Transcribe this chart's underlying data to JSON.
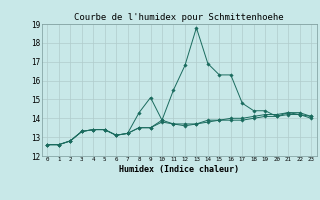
{
  "title": "Courbe de l'humidex pour Schmittenhoehe",
  "xlabel": "Humidex (Indice chaleur)",
  "xlim": [
    -0.5,
    23.5
  ],
  "ylim": [
    12,
    19
  ],
  "xticks": [
    0,
    1,
    2,
    3,
    4,
    5,
    6,
    7,
    8,
    9,
    10,
    11,
    12,
    13,
    14,
    15,
    16,
    17,
    18,
    19,
    20,
    21,
    22,
    23
  ],
  "yticks": [
    12,
    13,
    14,
    15,
    16,
    17,
    18,
    19
  ],
  "bg_color": "#c8e8e8",
  "grid_color": "#b0cccc",
  "line_color": "#1a6b5e",
  "line1": [
    12.6,
    12.6,
    12.8,
    13.3,
    13.4,
    13.4,
    13.1,
    13.2,
    14.3,
    15.1,
    13.9,
    15.5,
    16.8,
    18.8,
    16.9,
    16.3,
    16.3,
    14.8,
    14.4,
    14.4,
    14.1,
    14.3,
    14.2,
    14.1
  ],
  "line2": [
    12.6,
    12.6,
    12.8,
    13.3,
    13.4,
    13.4,
    13.1,
    13.2,
    13.5,
    13.5,
    13.9,
    13.7,
    13.7,
    13.7,
    13.9,
    13.9,
    14.0,
    14.0,
    14.1,
    14.2,
    14.2,
    14.3,
    14.3,
    14.1
  ],
  "line3": [
    12.6,
    12.6,
    12.8,
    13.3,
    13.4,
    13.4,
    13.1,
    13.2,
    13.5,
    13.5,
    13.8,
    13.7,
    13.6,
    13.7,
    13.8,
    13.9,
    13.9,
    13.9,
    14.0,
    14.1,
    14.1,
    14.2,
    14.2,
    14.0
  ],
  "title_fontsize": 6.5,
  "xlabel_fontsize": 6.0,
  "xtick_fontsize": 4.2,
  "ytick_fontsize": 5.5
}
